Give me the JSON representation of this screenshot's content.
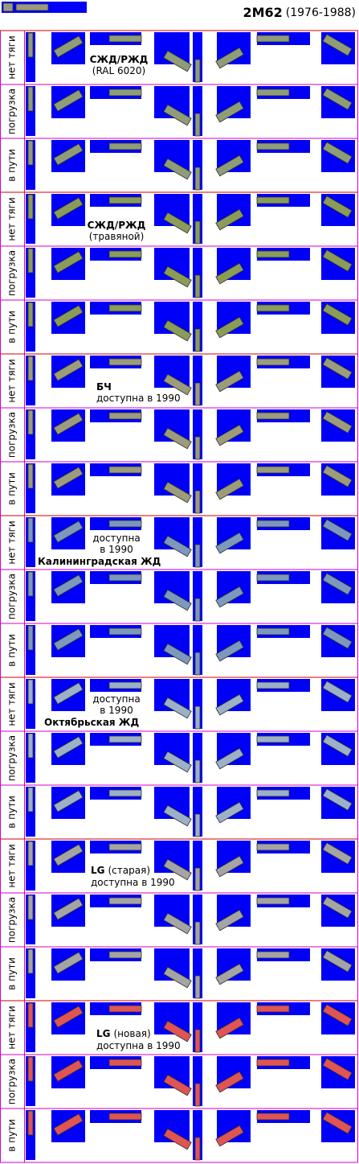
{
  "header": {
    "title": "2М62",
    "years": "(1976-1988)"
  },
  "groups": [
    {
      "rows": [
        "нет тяги",
        "погрузка",
        "в пути"
      ],
      "lines": [
        [
          {
            "text": "СЖД/РЖД",
            "bold": true
          }
        ],
        [
          {
            "text": "(RAL 6020)",
            "bold": false
          }
        ]
      ]
    },
    {
      "rows": [
        "нет тяги",
        "погрузка",
        "в пути"
      ],
      "lines": [
        [
          {
            "text": "СЖД/РЖД",
            "bold": true
          }
        ],
        [
          {
            "text": "(травяной)",
            "bold": false
          }
        ]
      ]
    },
    {
      "rows": [
        "нет тяги",
        "погрузка",
        "в пути"
      ],
      "lines": [
        [
          {
            "text": "БЧ",
            "bold": true
          }
        ],
        [
          {
            "text": "доступна в 1990",
            "bold": false
          }
        ]
      ]
    },
    {
      "rows": [
        "нет тяги",
        "погрузка",
        "в пути"
      ],
      "lines": [
        [
          {
            "text": "доступна",
            "bold": false
          }
        ],
        [
          {
            "text": "в 1990",
            "bold": false
          }
        ],
        [
          {
            "text": "Калининградская ЖД",
            "bold": true
          }
        ]
      ]
    },
    {
      "rows": [
        "нет тяги",
        "погрузка",
        "в пути"
      ],
      "lines": [
        [
          {
            "text": "доступна",
            "bold": false
          }
        ],
        [
          {
            "text": "в 1990",
            "bold": false
          }
        ],
        [
          {
            "text": "Октябрьская ЖД",
            "bold": true
          }
        ]
      ]
    },
    {
      "rows": [
        "нет тяги",
        "погрузка",
        "в пути"
      ],
      "lines": [
        [
          {
            "text": "LG",
            "bold": true
          },
          {
            "text": "(старая)",
            "bold": false
          }
        ],
        [
          {
            "text": "доступна в 1990",
            "bold": false
          }
        ]
      ]
    },
    {
      "rows": [
        "нет тяги",
        "погрузка",
        "в пути"
      ],
      "lines": [
        [
          {
            "text": "LG",
            "bold": true
          },
          {
            "text": "(новая)",
            "bold": false
          }
        ],
        [
          {
            "text": "доступна в 1990",
            "bold": false
          }
        ]
      ]
    }
  ]
}
